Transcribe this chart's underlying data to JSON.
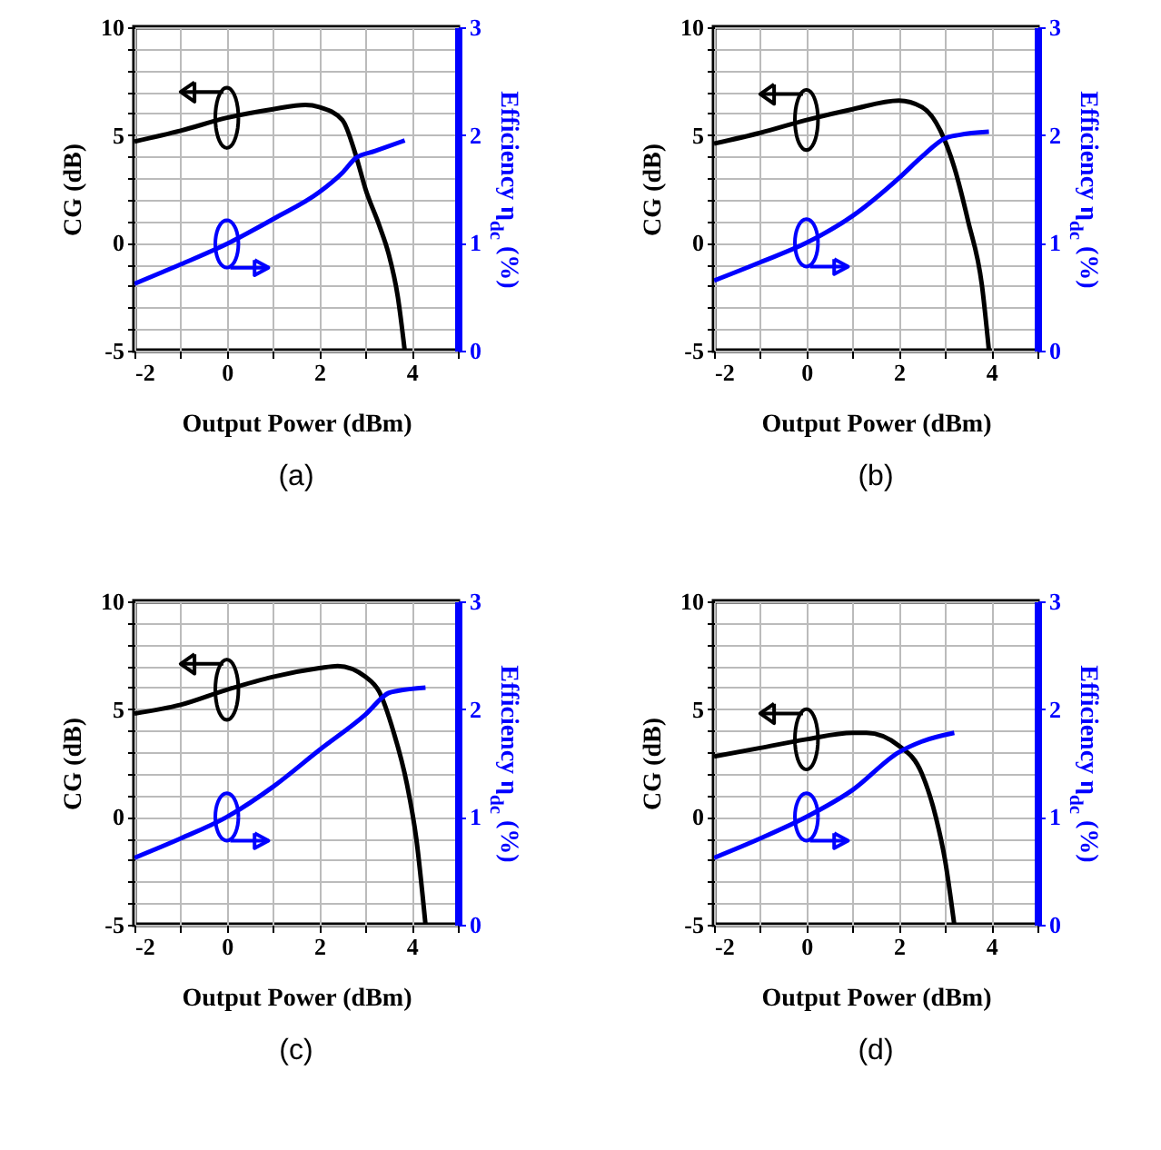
{
  "chart_data": [
    {
      "type": "line",
      "title": "(a)",
      "xlabel": "Output Power (dBm)",
      "ylabel": "CG (dB)",
      "y2label": "Efficiency η$_{dc}$ (%)",
      "xlim": [
        -2,
        5
      ],
      "xticks": [
        -2,
        {
          "value": -1,
          "label": null
        },
        0,
        {
          "value": 1,
          "label": null
        },
        2,
        {
          "value": 3,
          "label": null
        },
        4,
        {
          "value": 5,
          "label": null
        }
      ],
      "ylim": [
        -5,
        10
      ],
      "yticks": [
        -5,
        {
          "value": -4,
          "label": null
        },
        {
          "value": -3,
          "label": null
        },
        {
          "value": -2,
          "label": null
        },
        {
          "value": -1,
          "label": null
        },
        0,
        {
          "value": 1,
          "label": null
        },
        {
          "value": 2,
          "label": null
        },
        {
          "value": 3,
          "label": null
        },
        {
          "value": 4,
          "label": null
        },
        5,
        {
          "value": 6,
          "label": null
        },
        {
          "value": 7,
          "label": null
        },
        {
          "value": 8,
          "label": null
        },
        {
          "value": 9,
          "label": null
        },
        10
      ],
      "y2lim": [
        0,
        3
      ],
      "y2ticks": [
        0,
        1,
        2,
        3
      ],
      "grid": true,
      "series": [
        {
          "color": "#000000",
          "x": [
            -2,
            -1,
            0,
            1,
            1.7,
            2,
            2.5,
            2.8,
            3,
            3.3,
            3.5,
            3.7,
            3.85
          ],
          "values": [
            4.7,
            5.2,
            5.8,
            6.2,
            6.4,
            6.3,
            5.7,
            4,
            2.5,
            0.8,
            -0.5,
            -2.5,
            -5
          ]
        },
        {
          "color": "#0000ff",
          "axis": "y2",
          "x": [
            -2,
            -1,
            0,
            1,
            2,
            2.5,
            2.8,
            3.2,
            3.85
          ],
          "values": [
            0.62,
            0.8,
            0.99,
            1.22,
            1.47,
            1.65,
            1.79,
            1.85,
            1.95
          ]
        }
      ]
    },
    {
      "type": "line",
      "title": "(b)",
      "xlabel": "Output Power (dBm)",
      "ylabel": "CG (dB)",
      "y2label": "Efficiency η$_{dc}$ (%)",
      "xlim": [
        -2,
        5
      ],
      "xticks": [
        -2,
        {
          "value": -1,
          "label": null
        },
        0,
        {
          "value": 1,
          "label": null
        },
        2,
        {
          "value": 3,
          "label": null
        },
        4,
        {
          "value": 5,
          "label": null
        }
      ],
      "ylim": [
        -5,
        10
      ],
      "yticks": [
        -5,
        {
          "value": -4,
          "label": null
        },
        {
          "value": -3,
          "label": null
        },
        {
          "value": -2,
          "label": null
        },
        {
          "value": -1,
          "label": null
        },
        0,
        {
          "value": 1,
          "label": null
        },
        {
          "value": 2,
          "label": null
        },
        {
          "value": 3,
          "label": null
        },
        {
          "value": 4,
          "label": null
        },
        5,
        {
          "value": 6,
          "label": null
        },
        {
          "value": 7,
          "label": null
        },
        {
          "value": 8,
          "label": null
        },
        {
          "value": 9,
          "label": null
        },
        10
      ],
      "y2lim": [
        0,
        3
      ],
      "y2ticks": [
        0,
        1,
        2,
        3
      ],
      "grid": true,
      "series": [
        {
          "color": "#000000",
          "x": [
            -2,
            -1,
            0,
            1,
            2,
            2.5,
            2.9,
            3.2,
            3.5,
            3.8,
            3.95
          ],
          "values": [
            4.6,
            5.1,
            5.7,
            6.2,
            6.6,
            6.3,
            5.2,
            3.5,
            1,
            -2,
            -5
          ]
        },
        {
          "color": "#0000ff",
          "axis": "y2",
          "x": [
            -2,
            -1,
            0,
            1,
            2,
            2.5,
            3,
            3.3,
            3.95
          ],
          "values": [
            0.65,
            0.82,
            1,
            1.25,
            1.6,
            1.8,
            1.97,
            2,
            2.03
          ]
        }
      ]
    },
    {
      "type": "line",
      "title": "(c)",
      "xlabel": "Output Power (dBm)",
      "ylabel": "CG (dB)",
      "y2label": "Efficiency η$_{dc}$ (%)",
      "xlim": [
        -2,
        5
      ],
      "xticks": [
        -2,
        {
          "value": -1,
          "label": null
        },
        0,
        {
          "value": 1,
          "label": null
        },
        2,
        {
          "value": 3,
          "label": null
        },
        4,
        {
          "value": 5,
          "label": null
        }
      ],
      "ylim": [
        -5,
        10
      ],
      "yticks": [
        -5,
        {
          "value": -4,
          "label": null
        },
        {
          "value": -3,
          "label": null
        },
        {
          "value": -2,
          "label": null
        },
        {
          "value": -1,
          "label": null
        },
        0,
        {
          "value": 1,
          "label": null
        },
        {
          "value": 2,
          "label": null
        },
        {
          "value": 3,
          "label": null
        },
        {
          "value": 4,
          "label": null
        },
        5,
        {
          "value": 6,
          "label": null
        },
        {
          "value": 7,
          "label": null
        },
        {
          "value": 8,
          "label": null
        },
        {
          "value": 9,
          "label": null
        },
        10
      ],
      "y2lim": [
        0,
        3
      ],
      "y2ticks": [
        0,
        1,
        2,
        3
      ],
      "grid": true,
      "series": [
        {
          "color": "#000000",
          "x": [
            -2,
            -1,
            0,
            1,
            2,
            2.4,
            3,
            3.3,
            3.6,
            3.9,
            4.1,
            4.3
          ],
          "values": [
            4.8,
            5.2,
            5.9,
            6.5,
            6.9,
            7,
            6.5,
            5.8,
            4,
            1.5,
            -1,
            -5
          ]
        },
        {
          "color": "#0000ff",
          "axis": "y2",
          "x": [
            -2,
            -1,
            0,
            1,
            2,
            3,
            3.5,
            3.7,
            4.3
          ],
          "values": [
            0.62,
            0.8,
            1,
            1.28,
            1.62,
            1.95,
            2.15,
            2.17,
            2.2
          ]
        }
      ]
    },
    {
      "type": "line",
      "title": "(d)",
      "xlabel": "Output Power (dBm)",
      "ylabel": "CG (dB)",
      "y2label": "Efficiency η$_{dc}$ (%)",
      "xlim": [
        -2,
        5
      ],
      "xticks": [
        -2,
        {
          "value": -1,
          "label": null
        },
        0,
        {
          "value": 1,
          "label": null
        },
        2,
        {
          "value": 3,
          "label": null
        },
        4,
        {
          "value": 5,
          "label": null
        }
      ],
      "ylim": [
        -5,
        10
      ],
      "yticks": [
        -5,
        {
          "value": -4,
          "label": null
        },
        {
          "value": -3,
          "label": null
        },
        {
          "value": -2,
          "label": null
        },
        {
          "value": -1,
          "label": null
        },
        0,
        {
          "value": 1,
          "label": null
        },
        {
          "value": 2,
          "label": null
        },
        {
          "value": 3,
          "label": null
        },
        {
          "value": 4,
          "label": null
        },
        5,
        {
          "value": 6,
          "label": null
        },
        {
          "value": 7,
          "label": null
        },
        {
          "value": 8,
          "label": null
        },
        {
          "value": 9,
          "label": null
        },
        10
      ],
      "y2lim": [
        0,
        3
      ],
      "y2ticks": [
        0,
        1,
        2,
        3
      ],
      "grid": true,
      "series": [
        {
          "color": "#000000",
          "x": [
            -2,
            -1,
            0,
            1,
            1.3,
            2,
            2.5,
            2.8,
            3,
            3.2
          ],
          "values": [
            2.8,
            3.2,
            3.6,
            3.9,
            3.9,
            3.3,
            2,
            0,
            -2,
            -5
          ]
        },
        {
          "color": "#0000ff",
          "axis": "y2",
          "x": [
            -2,
            -1,
            0,
            1,
            2,
            2.5,
            3.2
          ],
          "values": [
            0.62,
            0.8,
            1,
            1.25,
            1.6,
            1.7,
            1.78
          ]
        }
      ]
    }
  ]
}
